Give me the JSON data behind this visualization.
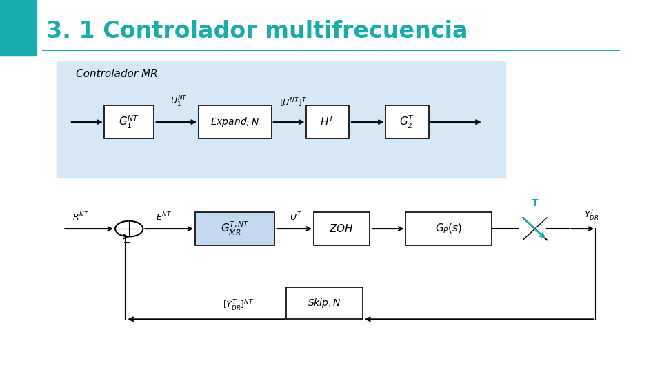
{
  "title": "3. 1 Controlador multifrecuencia",
  "title_color": "#1AACAC",
  "background_color": "#ffffff",
  "teal_bar_color": "#1AACAC",
  "light_blue_bg": "#D6E8F5",
  "box_fill_controller": "#C5D9F1",
  "controlador_label": "Controlador MR"
}
